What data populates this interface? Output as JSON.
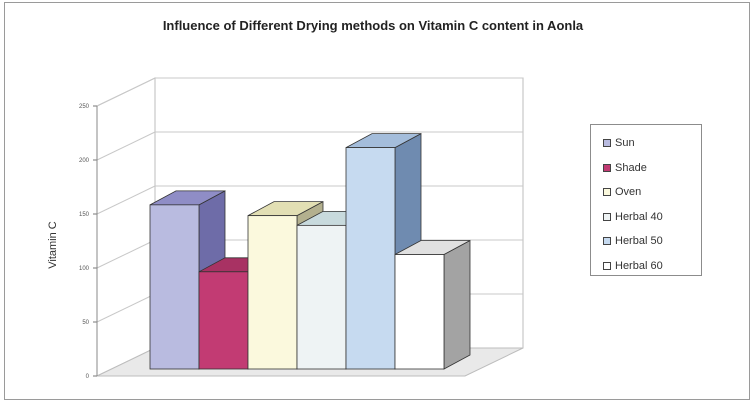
{
  "chart_data": {
    "type": "bar",
    "title": "Influence of Different Drying methods on Vitamin C content in Aonla",
    "ylabel": "Vitamin C",
    "xlabel": "",
    "ylim": [
      0,
      250
    ],
    "yticks": [
      "0",
      "50",
      "100",
      "150",
      "200",
      "250"
    ],
    "series": [
      {
        "name": "Sun",
        "value": 152,
        "front": "#b9bbe0",
        "side": "#6e6ca8",
        "top": "#8f8dc6"
      },
      {
        "name": "Shade",
        "value": 90,
        "front": "#c23b73",
        "side": "#8a2450",
        "top": "#a83263"
      },
      {
        "name": "Oven",
        "value": 142,
        "front": "#fbf9dd",
        "side": "#b3b08e",
        "top": "#e2dfb4"
      },
      {
        "name": "Herbal 40",
        "value": 133,
        "front": "#eef3f4",
        "side": "#9eb1b5",
        "top": "#c8dadd"
      },
      {
        "name": "Herbal 50",
        "value": 205,
        "front": "#c6daf0",
        "side": "#6f8bb0",
        "top": "#a4bddb"
      },
      {
        "name": "Herbal 60",
        "value": 106,
        "front": "#ffffff",
        "side": "#a3a3a3",
        "top": "#e0e0e0"
      }
    ],
    "grid": true,
    "legend": "right"
  }
}
